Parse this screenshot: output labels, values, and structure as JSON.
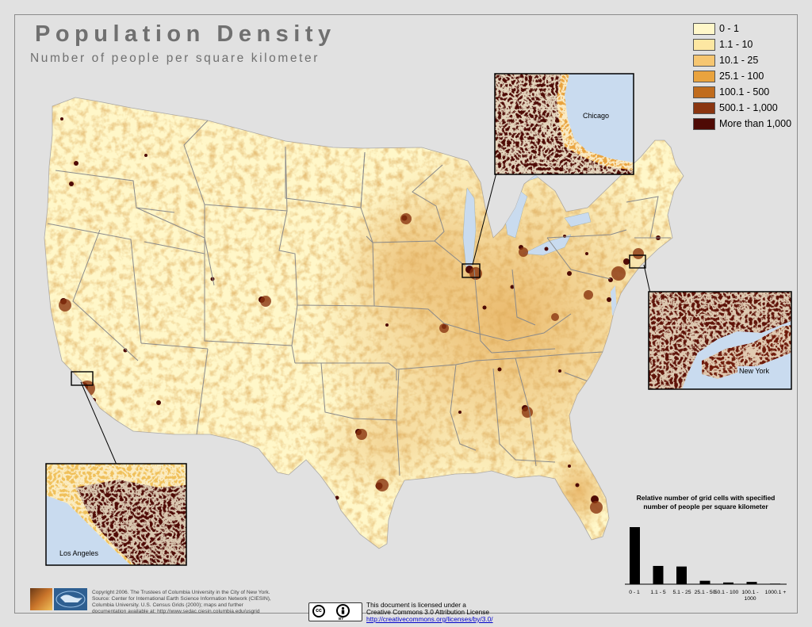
{
  "header": {
    "title": "Population Density",
    "subtitle": "Number of people per square kilometer"
  },
  "legend": {
    "items": [
      {
        "label": "0 - 1",
        "color": "#fff7c9"
      },
      {
        "label": "1.1 - 10",
        "color": "#fde7a2"
      },
      {
        "label": "10.1 - 25",
        "color": "#f6c671"
      },
      {
        "label": "25.1 - 100",
        "color": "#e9a33e"
      },
      {
        "label": "100.1 - 500",
        "color": "#c06c1d"
      },
      {
        "label": "500.1 - 1,000",
        "color": "#8a3510"
      },
      {
        "label": "More than 1,000",
        "color": "#4e0a05"
      }
    ]
  },
  "insets": {
    "chicago": "Chicago",
    "new_york": "New York",
    "los_angeles": "Los Angeles"
  },
  "histogram": {
    "title": "Relative number of grid cells with specified number of people per square kilometer",
    "categories": [
      "0 - 1",
      "1.1 - 5",
      "5.1 - 25",
      "25.1 - 50",
      "50.1 - 100",
      "100.1 - 1000",
      "1000.1 +"
    ],
    "values": [
      100,
      32,
      31,
      6,
      3,
      4,
      1
    ]
  },
  "credits": [
    "Copyright 2006.  The Trustees of Columbia University in the City of New York.",
    "Source: Center for International Earth Science Information Network (CIESIN),",
    "Columbia University.  U.S. Census Grids (2000); maps and further",
    "documentation available at: http://www.sedac.ciesin.columbia.edu/usgrid"
  ],
  "license": {
    "cc_label": "cc",
    "by_label": "BY",
    "line1": "This document is licensed under a",
    "line2": "Creative Commons 3.0 Attribution License",
    "link": "http://creativecommons.org/licenses/by/3.0/"
  },
  "colors": {
    "background": "#e1e1e1",
    "water": "#c9dbef",
    "state_border": "#8a8a8a"
  }
}
